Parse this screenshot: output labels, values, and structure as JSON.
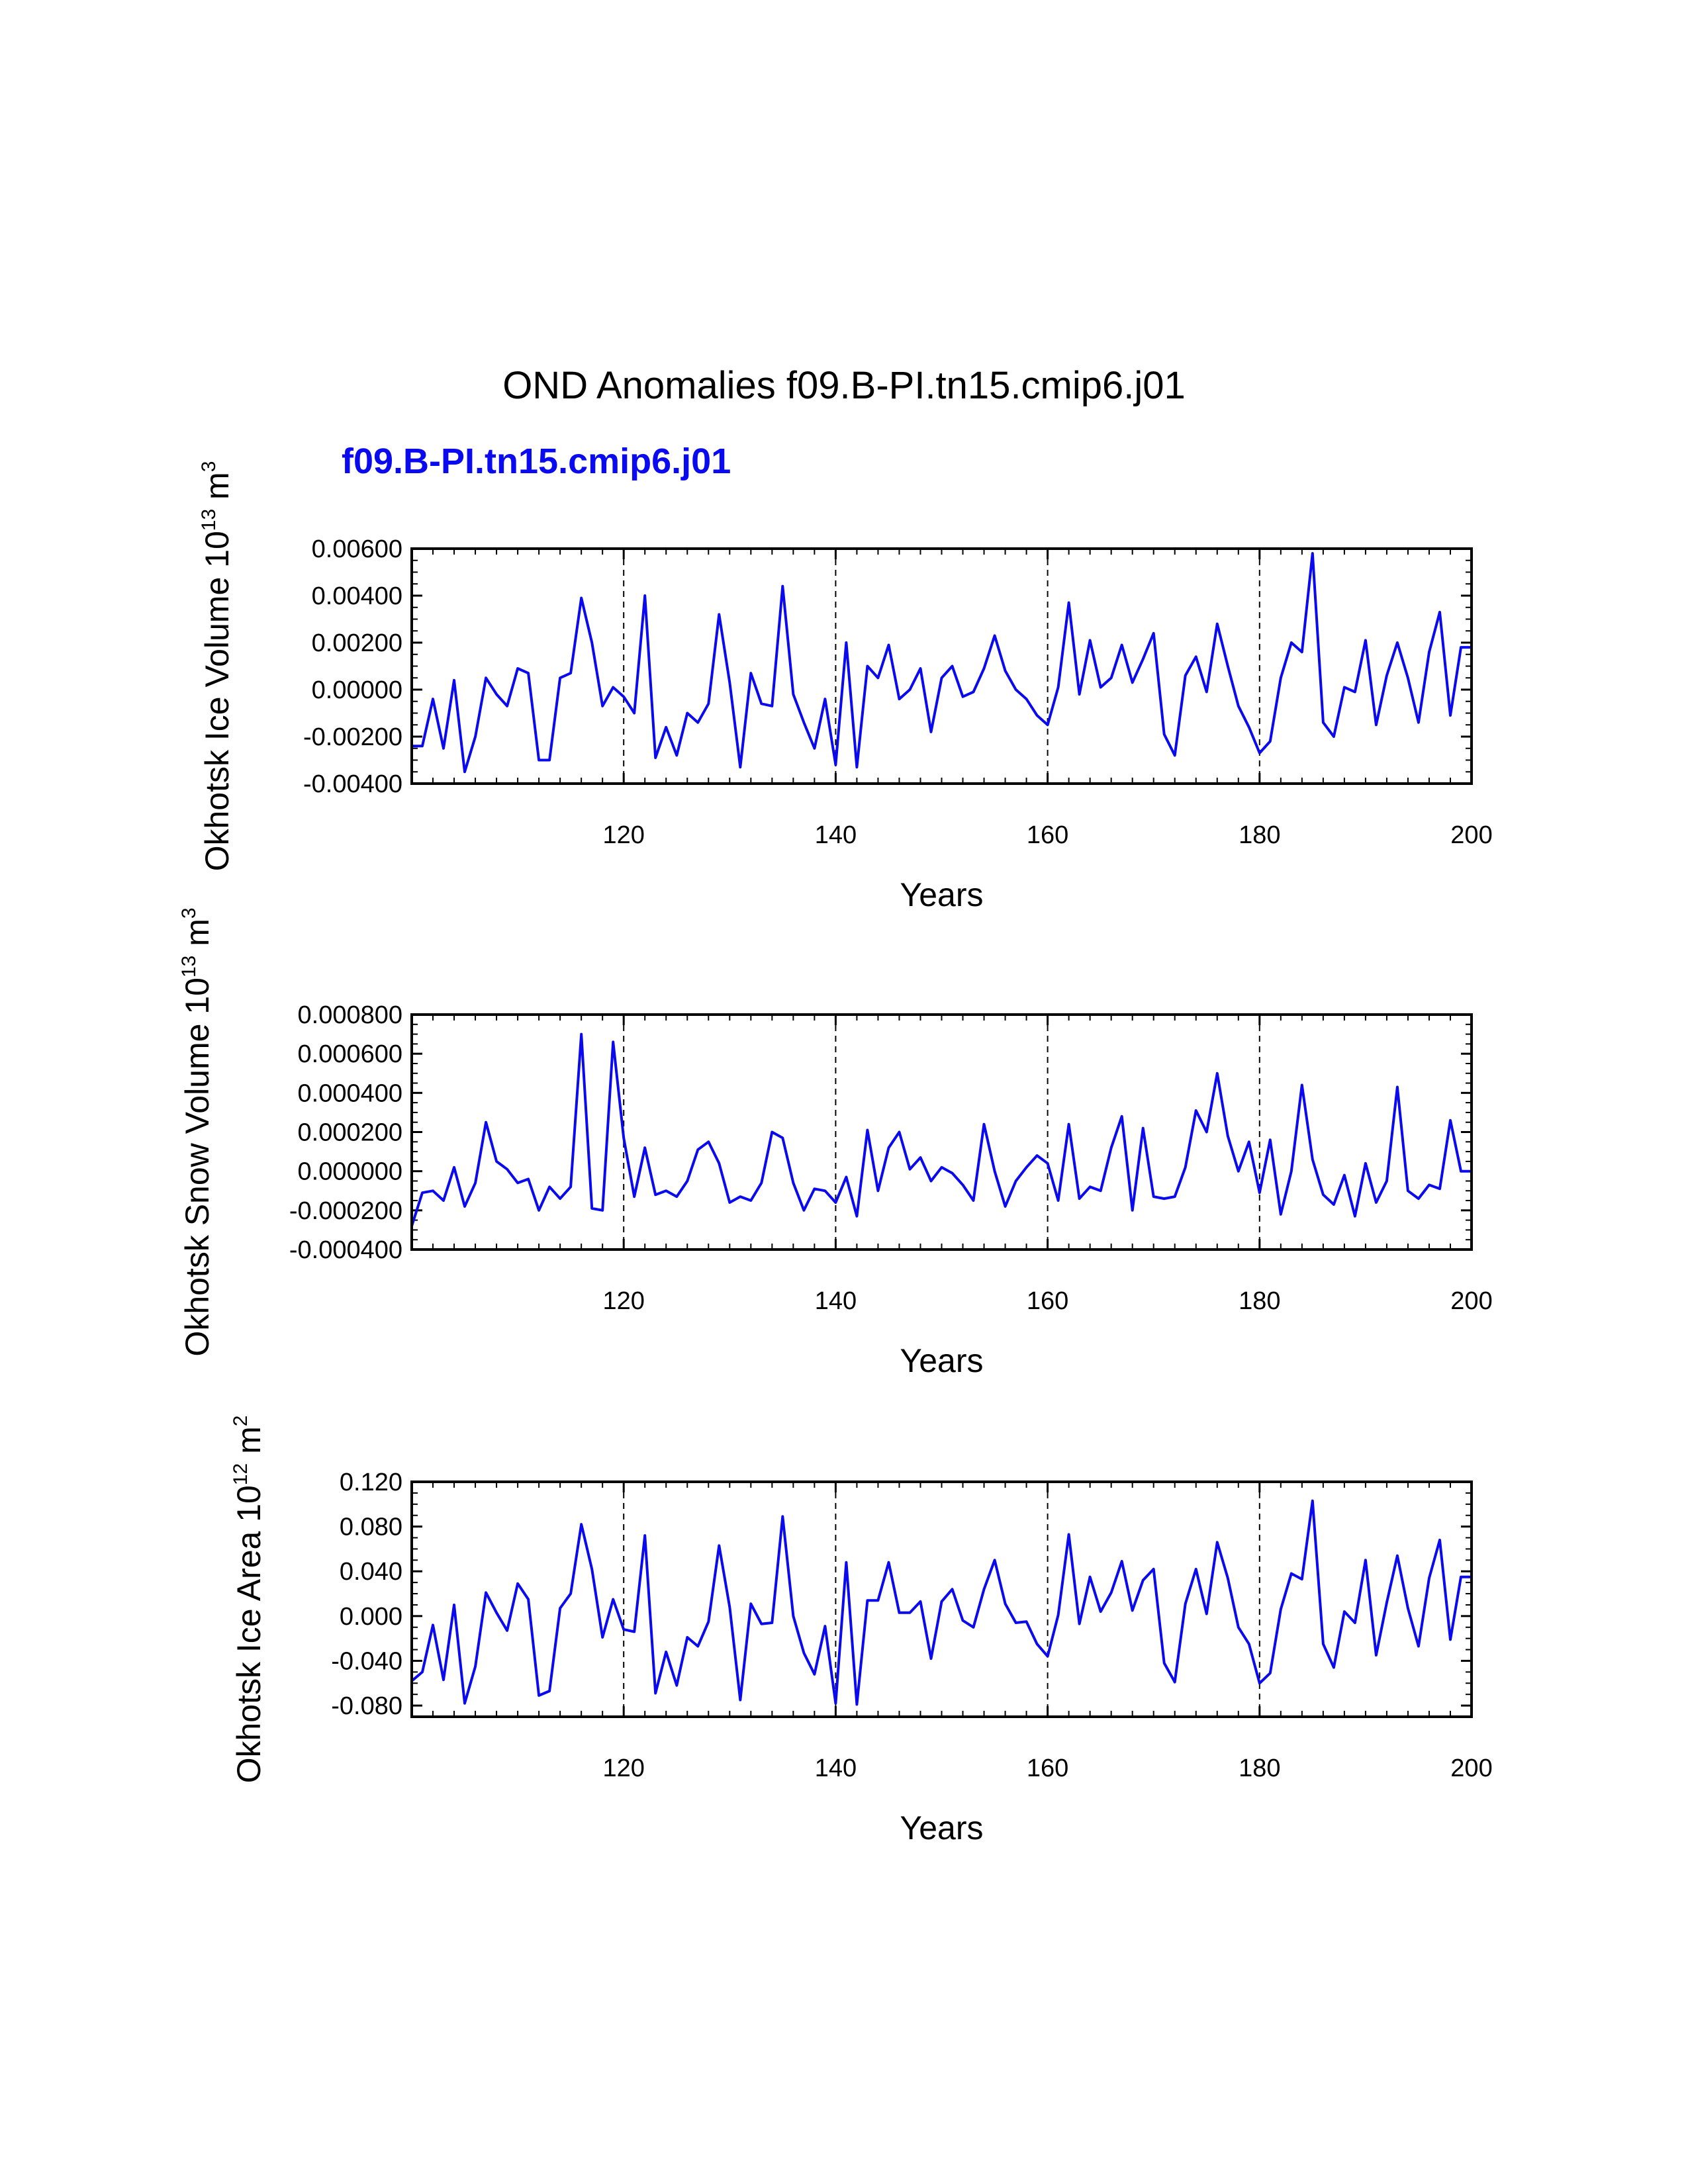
{
  "page": {
    "title": "OND Anomalies f09.B-PI.tn15.cmip6.j01",
    "subtitle": "f09.B-PI.tn15.cmip6.j01",
    "colors": {
      "line": "#0a0af0",
      "subtitle": "#0a0af0",
      "axis": "#000000"
    }
  },
  "chart_data": [
    {
      "type": "line",
      "ylabel": {
        "text": "Okhotsk Ice Volume 10",
        "sup": "13",
        "mid": " m",
        "sup2": "3"
      },
      "xlabel": "Years",
      "xlim": [
        100,
        200
      ],
      "ylim": [
        -0.004,
        0.006
      ],
      "xticks": [
        120,
        140,
        160,
        180,
        200
      ],
      "xtick_labels": [
        "120",
        "140",
        "160",
        "180",
        "200"
      ],
      "yticks": [
        -0.004,
        -0.002,
        0.0,
        0.002,
        0.004,
        0.006
      ],
      "ytick_labels": [
        "-0.00400",
        "-0.00200",
        "0.00000",
        "0.00200",
        "0.00400",
        "0.00600"
      ],
      "y_minor_step": 0.0005,
      "vlines": [
        120,
        140,
        160,
        180
      ],
      "series": [
        {
          "name": "f09.B-PI.tn15.cmip6.j01",
          "x": [
            100,
            101,
            102,
            103,
            104,
            105,
            106,
            107,
            108,
            109,
            110,
            111,
            112,
            113,
            114,
            115,
            116,
            117,
            118,
            119,
            120,
            121,
            122,
            123,
            124,
            125,
            126,
            127,
            128,
            129,
            130,
            131,
            132,
            133,
            134,
            135,
            136,
            137,
            138,
            139,
            140,
            141,
            142,
            143,
            144,
            145,
            146,
            147,
            148,
            149,
            150,
            151,
            152,
            153,
            154,
            155,
            156,
            157,
            158,
            159,
            160,
            161,
            162,
            163,
            164,
            165,
            166,
            167,
            168,
            169,
            170,
            171,
            172,
            173,
            174,
            175,
            176,
            177,
            178,
            179,
            180,
            181,
            182,
            183,
            184,
            185,
            186,
            187,
            188,
            189,
            190,
            191,
            192,
            193,
            194,
            195,
            196,
            197,
            198,
            199,
            200
          ],
          "values": [
            -0.0024,
            -0.0024,
            -0.0004,
            -0.0025,
            0.0004,
            -0.0035,
            -0.002,
            0.0005,
            -0.0002,
            -0.0007,
            0.0009,
            0.0007,
            -0.003,
            -0.003,
            0.0005,
            0.0007,
            0.0039,
            0.002,
            -0.0007,
            0.0001,
            -0.0003,
            -0.001,
            0.004,
            -0.0029,
            -0.0016,
            -0.0028,
            -0.001,
            -0.0014,
            -0.0006,
            0.0032,
            0.0003,
            -0.0033,
            0.0007,
            -0.0006,
            -0.0007,
            0.0044,
            -0.0002,
            -0.0014,
            -0.0025,
            -0.0004,
            -0.0032,
            0.002,
            -0.0033,
            0.001,
            0.0005,
            0.0019,
            -0.0004,
            0.0,
            0.0009,
            -0.0018,
            0.0005,
            0.001,
            -0.0003,
            -0.0001,
            0.0009,
            0.0023,
            0.0008,
            0.0,
            -0.0004,
            -0.0011,
            -0.0015,
            0.0001,
            0.0037,
            -0.0002,
            0.0021,
            0.0001,
            0.0005,
            0.0019,
            0.0003,
            0.0013,
            0.0024,
            -0.0019,
            -0.0028,
            0.0006,
            0.0014,
            -0.0001,
            0.0028,
            0.001,
            -0.0007,
            -0.0016,
            -0.0027,
            -0.0022,
            0.0005,
            0.002,
            0.0016,
            0.0058,
            -0.0014,
            -0.002,
            0.0001,
            -0.0001,
            0.0021,
            -0.0015,
            0.0006,
            0.002,
            0.0005,
            -0.0014,
            0.0016,
            0.0033,
            -0.0011,
            0.0018,
            0.0018
          ]
        }
      ]
    },
    {
      "type": "line",
      "ylabel": {
        "text": "Okhotsk Snow Volume 10",
        "sup": "13",
        "mid": " m",
        "sup2": "3"
      },
      "xlabel": "Years",
      "xlim": [
        100,
        200
      ],
      "ylim": [
        -0.0004,
        0.0008
      ],
      "xticks": [
        120,
        140,
        160,
        180,
        200
      ],
      "xtick_labels": [
        "120",
        "140",
        "160",
        "180",
        "200"
      ],
      "yticks": [
        -0.0004,
        -0.0002,
        0.0,
        0.0002,
        0.0004,
        0.0006,
        0.0008
      ],
      "ytick_labels": [
        "-0.000400",
        "-0.000200",
        "0.000000",
        "0.000200",
        "0.000400",
        "0.000600",
        "0.000800"
      ],
      "y_minor_step": 5e-05,
      "vlines": [
        120,
        140,
        160,
        180
      ],
      "series": [
        {
          "name": "f09.B-PI.tn15.cmip6.j01",
          "x": [
            100,
            101,
            102,
            103,
            104,
            105,
            106,
            107,
            108,
            109,
            110,
            111,
            112,
            113,
            114,
            115,
            116,
            117,
            118,
            119,
            120,
            121,
            122,
            123,
            124,
            125,
            126,
            127,
            128,
            129,
            130,
            131,
            132,
            133,
            134,
            135,
            136,
            137,
            138,
            139,
            140,
            141,
            142,
            143,
            144,
            145,
            146,
            147,
            148,
            149,
            150,
            151,
            152,
            153,
            154,
            155,
            156,
            157,
            158,
            159,
            160,
            161,
            162,
            163,
            164,
            165,
            166,
            167,
            168,
            169,
            170,
            171,
            172,
            173,
            174,
            175,
            176,
            177,
            178,
            179,
            180,
            181,
            182,
            183,
            184,
            185,
            186,
            187,
            188,
            189,
            190,
            191,
            192,
            193,
            194,
            195,
            196,
            197,
            198,
            199,
            200
          ],
          "values": [
            -0.00028,
            -0.00011,
            -0.0001,
            -0.00015,
            2e-05,
            -0.00018,
            -6e-05,
            0.00025,
            5e-05,
            1e-05,
            -6e-05,
            -4e-05,
            -0.0002,
            -8e-05,
            -0.00014,
            -8e-05,
            0.0007,
            -0.00019,
            -0.0002,
            0.00066,
            0.00017,
            -0.00013,
            0.00012,
            -0.00012,
            -0.0001,
            -0.00013,
            -5e-05,
            0.00011,
            0.00015,
            4e-05,
            -0.00016,
            -0.00013,
            -0.00015,
            -6e-05,
            0.0002,
            0.00017,
            -6e-05,
            -0.0002,
            -9e-05,
            -0.0001,
            -0.00016,
            -3e-05,
            -0.00023,
            0.00021,
            -0.0001,
            0.00012,
            0.0002,
            1e-05,
            7e-05,
            -5e-05,
            2e-05,
            -1e-05,
            -7e-05,
            -0.00015,
            0.00024,
            0.0,
            -0.00018,
            -5e-05,
            2e-05,
            8e-05,
            4e-05,
            -0.00015,
            0.00024,
            -0.00014,
            -8e-05,
            -0.0001,
            0.00012,
            0.00028,
            -0.0002,
            0.00022,
            -0.00013,
            -0.00014,
            -0.00013,
            2e-05,
            0.00031,
            0.0002,
            0.0005,
            0.00018,
            0.0,
            0.00015,
            -0.00011,
            0.00016,
            -0.00022,
            0.0,
            0.00044,
            6e-05,
            -0.00012,
            -0.00017,
            -2e-05,
            -0.00023,
            4e-05,
            -0.00016,
            -5e-05,
            0.00043,
            -0.0001,
            -0.00014,
            -7e-05,
            -9e-05,
            0.00026,
            0.0,
            0.0
          ]
        }
      ]
    },
    {
      "type": "line",
      "ylabel": {
        "text": "Okhotsk Ice Area 10",
        "sup": "12",
        "mid": " m",
        "sup2": "2"
      },
      "xlabel": "Years",
      "xlim": [
        100,
        200
      ],
      "ylim": [
        -0.09,
        0.12
      ],
      "xticks": [
        120,
        140,
        160,
        180,
        200
      ],
      "xtick_labels": [
        "120",
        "140",
        "160",
        "180",
        "200"
      ],
      "yticks": [
        -0.08,
        -0.04,
        0.0,
        0.04,
        0.08,
        0.12
      ],
      "ytick_labels": [
        "-0.080",
        "-0.040",
        "0.000",
        "0.040",
        "0.080",
        "0.120"
      ],
      "y_minor_step": 0.01,
      "vlines": [
        120,
        140,
        160,
        180
      ],
      "series": [
        {
          "name": "f09.B-PI.tn15.cmip6.j01",
          "x": [
            100,
            101,
            102,
            103,
            104,
            105,
            106,
            107,
            108,
            109,
            110,
            111,
            112,
            113,
            114,
            115,
            116,
            117,
            118,
            119,
            120,
            121,
            122,
            123,
            124,
            125,
            126,
            127,
            128,
            129,
            130,
            131,
            132,
            133,
            134,
            135,
            136,
            137,
            138,
            139,
            140,
            141,
            142,
            143,
            144,
            145,
            146,
            147,
            148,
            149,
            150,
            151,
            152,
            153,
            154,
            155,
            156,
            157,
            158,
            159,
            160,
            161,
            162,
            163,
            164,
            165,
            166,
            167,
            168,
            169,
            170,
            171,
            172,
            173,
            174,
            175,
            176,
            177,
            178,
            179,
            180,
            181,
            182,
            183,
            184,
            185,
            186,
            187,
            188,
            189,
            190,
            191,
            192,
            193,
            194,
            195,
            196,
            197,
            198,
            199,
            200
          ],
          "values": [
            -0.058,
            -0.05,
            -0.008,
            -0.057,
            0.01,
            -0.078,
            -0.045,
            0.021,
            0.003,
            -0.013,
            0.029,
            0.015,
            -0.071,
            -0.067,
            0.007,
            0.02,
            0.082,
            0.042,
            -0.019,
            0.015,
            -0.012,
            -0.014,
            0.072,
            -0.069,
            -0.032,
            -0.062,
            -0.019,
            -0.027,
            -0.005,
            0.063,
            0.008,
            -0.075,
            0.011,
            -0.007,
            -0.006,
            0.089,
            0.0,
            -0.033,
            -0.052,
            -0.009,
            -0.078,
            0.048,
            -0.079,
            0.014,
            0.014,
            0.048,
            0.003,
            0.003,
            0.013,
            -0.038,
            0.013,
            0.024,
            -0.004,
            -0.01,
            0.024,
            0.05,
            0.011,
            -0.006,
            -0.005,
            -0.025,
            -0.036,
            0.001,
            0.073,
            -0.007,
            0.035,
            0.004,
            0.021,
            0.049,
            0.005,
            0.032,
            0.042,
            -0.042,
            -0.059,
            0.011,
            0.042,
            0.002,
            0.066,
            0.034,
            -0.01,
            -0.025,
            -0.06,
            -0.051,
            0.006,
            0.038,
            0.033,
            0.103,
            -0.025,
            -0.046,
            0.004,
            -0.006,
            0.05,
            -0.035,
            0.012,
            0.054,
            0.007,
            -0.027,
            0.034,
            0.068,
            -0.021,
            0.035,
            0.035
          ]
        }
      ]
    }
  ]
}
